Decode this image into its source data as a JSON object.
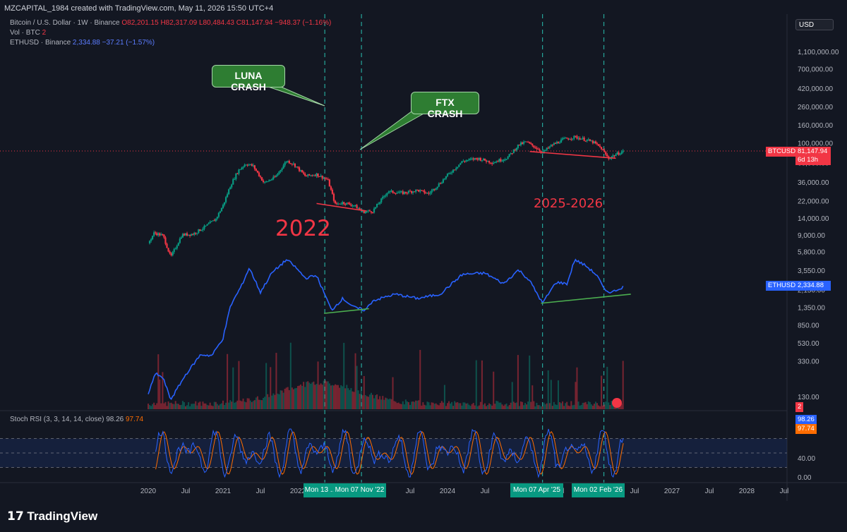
{
  "header": {
    "text": "MZCAPITAL_1984 created with TradingView.com, May 11, 2026 15:50 UTC+4"
  },
  "legend": {
    "btc_name": "Bitcoin / U.S. Dollar · 1W · Binance",
    "btc_o": "O82,201.15",
    "btc_h": "H82,317.09",
    "btc_l": "L80,484.43",
    "btc_c": "C81,147.94",
    "btc_chg": "−948.37 (−1.16%)",
    "vol_label": "Vol · BTC",
    "vol_value": "2",
    "eth_name": "ETHUSD · Binance",
    "eth_value": "2,334.88",
    "eth_chg": "−37.21 (−1.57%)"
  },
  "currency": "USD",
  "stoch": {
    "label": "Stoch RSI (3, 3, 14, 14, close)",
    "k": "98.26",
    "d": "97.74"
  },
  "annotations": {
    "luna": "LUNA CRASH",
    "ftx": "FTX CRASH",
    "year_2022": "2022",
    "year_2025": "2025-2026"
  },
  "x_tags": [
    "Mon 13 ...",
    "Mon 07 Nov '22",
    "Mon 07 Apr '25",
    "Mon 02 Feb '26"
  ],
  "price_tags": {
    "btc_label": "BTCUSD",
    "btc_price": "81,147.94",
    "btc_countdown": "6d 13h",
    "eth_label": "ETHUSD",
    "eth_price": "2,334.88",
    "vol_tag": "2"
  },
  "brand": "TradingView",
  "colors": {
    "bg": "#131722",
    "up": "#089981",
    "down": "#f23645",
    "eth": "#2962ff",
    "k_line": "#2962ff",
    "d_line": "#ff6d00",
    "guide": "#26a69a",
    "red_trend": "#f23645",
    "green_trend": "#4caf50"
  },
  "chart_data": {
    "type": "line",
    "title": "",
    "x_axis_labels": [
      "2020",
      "Jul",
      "2021",
      "Jul",
      "2022",
      "Jul",
      "2023",
      "Jul",
      "2024",
      "Jul",
      "2025",
      "Jul",
      "2026",
      "Jul",
      "2027",
      "Jul",
      "2028",
      "Jul"
    ],
    "y_axis_labels": [
      "1,100,000.00",
      "700,000.00",
      "420,000.00",
      "260,000.00",
      "160,000.00",
      "100,000.00",
      "60,000.00",
      "36,000.00",
      "22,000.00",
      "14,000.00",
      "9,000.00",
      "5,800.00",
      "3,550.00",
      "2,150.00",
      "1,350.00",
      "850.00",
      "530.00",
      "330.00",
      "130.00"
    ],
    "y_scale": "log",
    "stoch_axis_labels": [
      "40.00",
      "0.00"
    ],
    "btc": {
      "name": "BTCUSD",
      "x": [
        2020.0,
        2020.08,
        2020.2,
        2020.3,
        2020.45,
        2020.6,
        2020.75,
        2020.9,
        2021.0,
        2021.1,
        2021.2,
        2021.3,
        2021.4,
        2021.55,
        2021.7,
        2021.85,
        2021.95,
        2022.1,
        2022.25,
        2022.4,
        2022.5,
        2022.6,
        2022.75,
        2022.87,
        2023.0,
        2023.2,
        2023.4,
        2023.6,
        2023.75,
        2023.9,
        2024.0,
        2024.2,
        2024.4,
        2024.6,
        2024.8,
        2024.95,
        2025.05,
        2025.2,
        2025.27,
        2025.4,
        2025.55,
        2025.7,
        2025.8,
        2025.95,
        2026.05,
        2026.15,
        2026.25,
        2026.36
      ],
      "y": [
        7200,
        9500,
        8800,
        5000,
        9000,
        9200,
        11000,
        13500,
        19500,
        33000,
        48000,
        58000,
        55000,
        35000,
        41000,
        63000,
        57000,
        42000,
        44000,
        38000,
        20000,
        21000,
        19500,
        16500,
        16800,
        28000,
        27000,
        29000,
        26500,
        35000,
        43000,
        62000,
        67000,
        60000,
        68000,
        95000,
        103000,
        87000,
        78000,
        95000,
        110000,
        117000,
        112000,
        102000,
        88000,
        67000,
        74000,
        81147.94
      ]
    },
    "eth": {
      "name": "ETHUSD",
      "x": [
        2020.0,
        2020.1,
        2020.2,
        2020.3,
        2020.5,
        2020.7,
        2020.85,
        2021.0,
        2021.1,
        2021.25,
        2021.35,
        2021.5,
        2021.65,
        2021.85,
        2021.95,
        2022.1,
        2022.25,
        2022.45,
        2022.6,
        2022.75,
        2022.9,
        2023.0,
        2023.3,
        2023.6,
        2023.9,
        2024.2,
        2024.5,
        2024.75,
        2024.95,
        2025.1,
        2025.27,
        2025.45,
        2025.6,
        2025.7,
        2025.85,
        2026.0,
        2026.1,
        2026.2,
        2026.36
      ],
      "y": [
        140,
        240,
        210,
        120,
        230,
        390,
        380,
        600,
        1400,
        2400,
        3800,
        2000,
        3300,
        4700,
        4000,
        2900,
        3100,
        1250,
        1700,
        1350,
        1250,
        1600,
        1900,
        1700,
        1900,
        3200,
        3300,
        2500,
        3600,
        2700,
        1500,
        2600,
        2500,
        4700,
        4000,
        3100,
        2100,
        2000,
        2334.88
      ]
    },
    "trendlines": [
      {
        "series": "BTCUSD",
        "color": "red",
        "x": [
          2022.25,
          2022.92
        ],
        "y": [
          20500,
          16800
        ]
      },
      {
        "series": "BTCUSD",
        "color": "red",
        "x": [
          2025.1,
          2026.25
        ],
        "y": [
          80000,
          67000
        ]
      },
      {
        "series": "ETHUSD",
        "color": "green",
        "x": [
          2022.35,
          2022.95
        ],
        "y": [
          1150,
          1300
        ]
      },
      {
        "series": "ETHUSD",
        "color": "green",
        "x": [
          2025.25,
          2026.45
        ],
        "y": [
          1500,
          1900
        ]
      }
    ],
    "stoch_rsi": {
      "k_last": 98.26,
      "d_last": 97.74,
      "upper": 80,
      "middle": 50,
      "lower": 20
    }
  }
}
